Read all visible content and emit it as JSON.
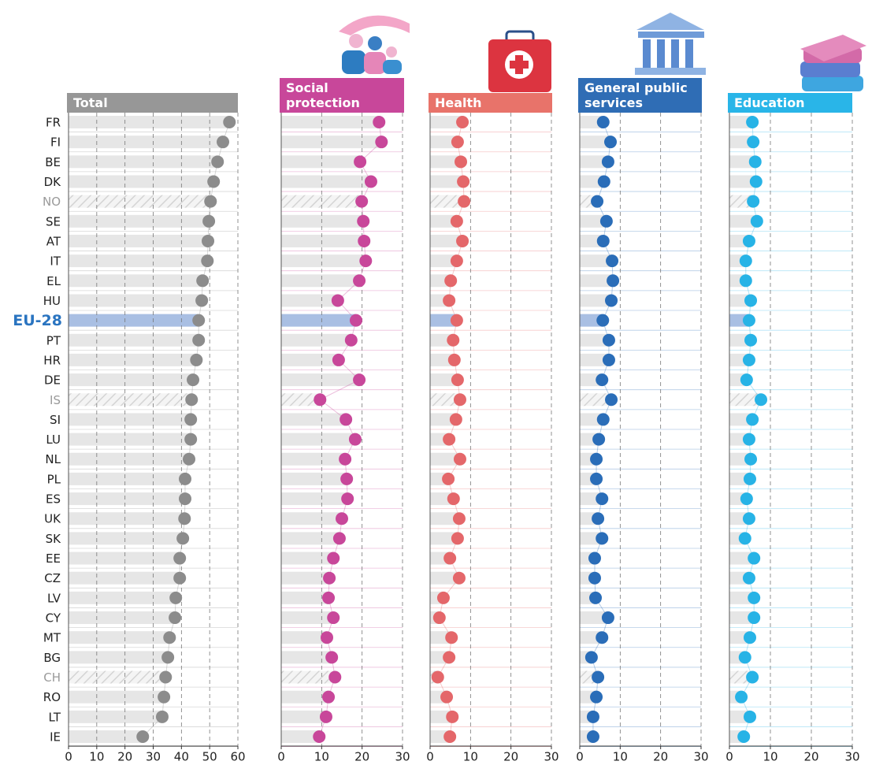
{
  "chart_data": [
    {
      "type": "dot",
      "title": "Total",
      "categories": [
        "FR",
        "FI",
        "BE",
        "DK",
        "NO",
        "SE",
        "AT",
        "IT",
        "EL",
        "HU",
        "EU-28",
        "PT",
        "HR",
        "DE",
        "IS",
        "SI",
        "LU",
        "NL",
        "PL",
        "ES",
        "UK",
        "SK",
        "EE",
        "CZ",
        "LV",
        "CY",
        "MT",
        "BG",
        "CH",
        "RO",
        "LT",
        "IE"
      ],
      "values": [
        57.0,
        54.7,
        52.8,
        51.4,
        50.3,
        49.7,
        49.4,
        49.2,
        47.5,
        47.2,
        46.1,
        46.1,
        45.3,
        44.1,
        43.6,
        43.3,
        43.3,
        42.7,
        41.3,
        41.3,
        41.1,
        40.5,
        39.4,
        39.4,
        38.0,
        37.7,
        35.8,
        35.2,
        34.4,
        33.8,
        33.2,
        26.3
      ],
      "color": "#8c8c8c",
      "header_color": "#979797",
      "xlim": [
        0,
        60
      ],
      "xticks": [
        0,
        10,
        20,
        30,
        40,
        50,
        60
      ],
      "grid": true,
      "highlight": [
        10
      ],
      "hatched": [
        4,
        14,
        28
      ]
    },
    {
      "type": "dot",
      "title": "Social protection",
      "values": [
        24.2,
        24.8,
        19.5,
        22.2,
        19.9,
        20.3,
        20.5,
        20.9,
        19.3,
        14.0,
        18.5,
        17.3,
        14.2,
        19.3,
        9.6,
        16.0,
        18.3,
        15.8,
        16.2,
        16.4,
        15.0,
        14.4,
        12.9,
        11.9,
        11.7,
        12.9,
        11.3,
        12.5,
        13.3,
        11.7,
        11.1,
        9.4
      ],
      "color": "#c8479a",
      "header_color": "#c8479a",
      "xlim": [
        0,
        30
      ],
      "xticks": [
        0,
        10,
        20,
        30
      ],
      "grid": true
    },
    {
      "type": "dot",
      "title": "Health",
      "values": [
        8.0,
        6.8,
        7.6,
        8.2,
        8.4,
        6.6,
        8.0,
        6.6,
        5.1,
        4.7,
        6.6,
        5.7,
        6.0,
        6.8,
        7.4,
        6.4,
        4.7,
        7.4,
        4.5,
        5.8,
        7.2,
        6.8,
        4.9,
        7.2,
        3.3,
        2.3,
        5.3,
        4.7,
        1.9,
        4.1,
        5.5,
        4.9
      ],
      "color": "#e4676a",
      "header_color": "#e8736a",
      "xlim": [
        0,
        30
      ],
      "xticks": [
        0,
        10,
        20,
        30
      ],
      "grid": true
    },
    {
      "type": "dot",
      "title": "General public services",
      "values": [
        5.8,
        7.6,
        7.0,
        6.0,
        4.3,
        6.6,
        5.8,
        8.0,
        8.2,
        7.8,
        5.7,
        7.2,
        7.2,
        5.5,
        7.8,
        5.8,
        4.7,
        4.1,
        4.1,
        5.5,
        4.5,
        5.5,
        3.7,
        3.7,
        3.9,
        7.0,
        5.5,
        2.9,
        4.5,
        4.1,
        3.3,
        3.3
      ],
      "color": "#2a6db8",
      "header_color": "#2f6db5",
      "xlim": [
        0,
        30
      ],
      "xticks": [
        0,
        10,
        20,
        30
      ],
      "grid": true
    },
    {
      "type": "dot",
      "title": "Education",
      "values": [
        5.6,
        5.8,
        6.3,
        6.5,
        5.8,
        6.7,
        4.8,
        4.0,
        4.0,
        5.2,
        4.8,
        5.2,
        4.8,
        4.2,
        7.7,
        5.6,
        4.8,
        5.2,
        5.0,
        4.2,
        4.8,
        3.8,
        6.0,
        4.8,
        6.0,
        6.0,
        5.0,
        3.8,
        5.6,
        2.9,
        5.0,
        3.5
      ],
      "color": "#27b3e6",
      "header_color": "#29b5e8",
      "xlim": [
        0,
        30
      ],
      "xticks": [
        0,
        10,
        20,
        30
      ],
      "grid": true
    }
  ]
}
